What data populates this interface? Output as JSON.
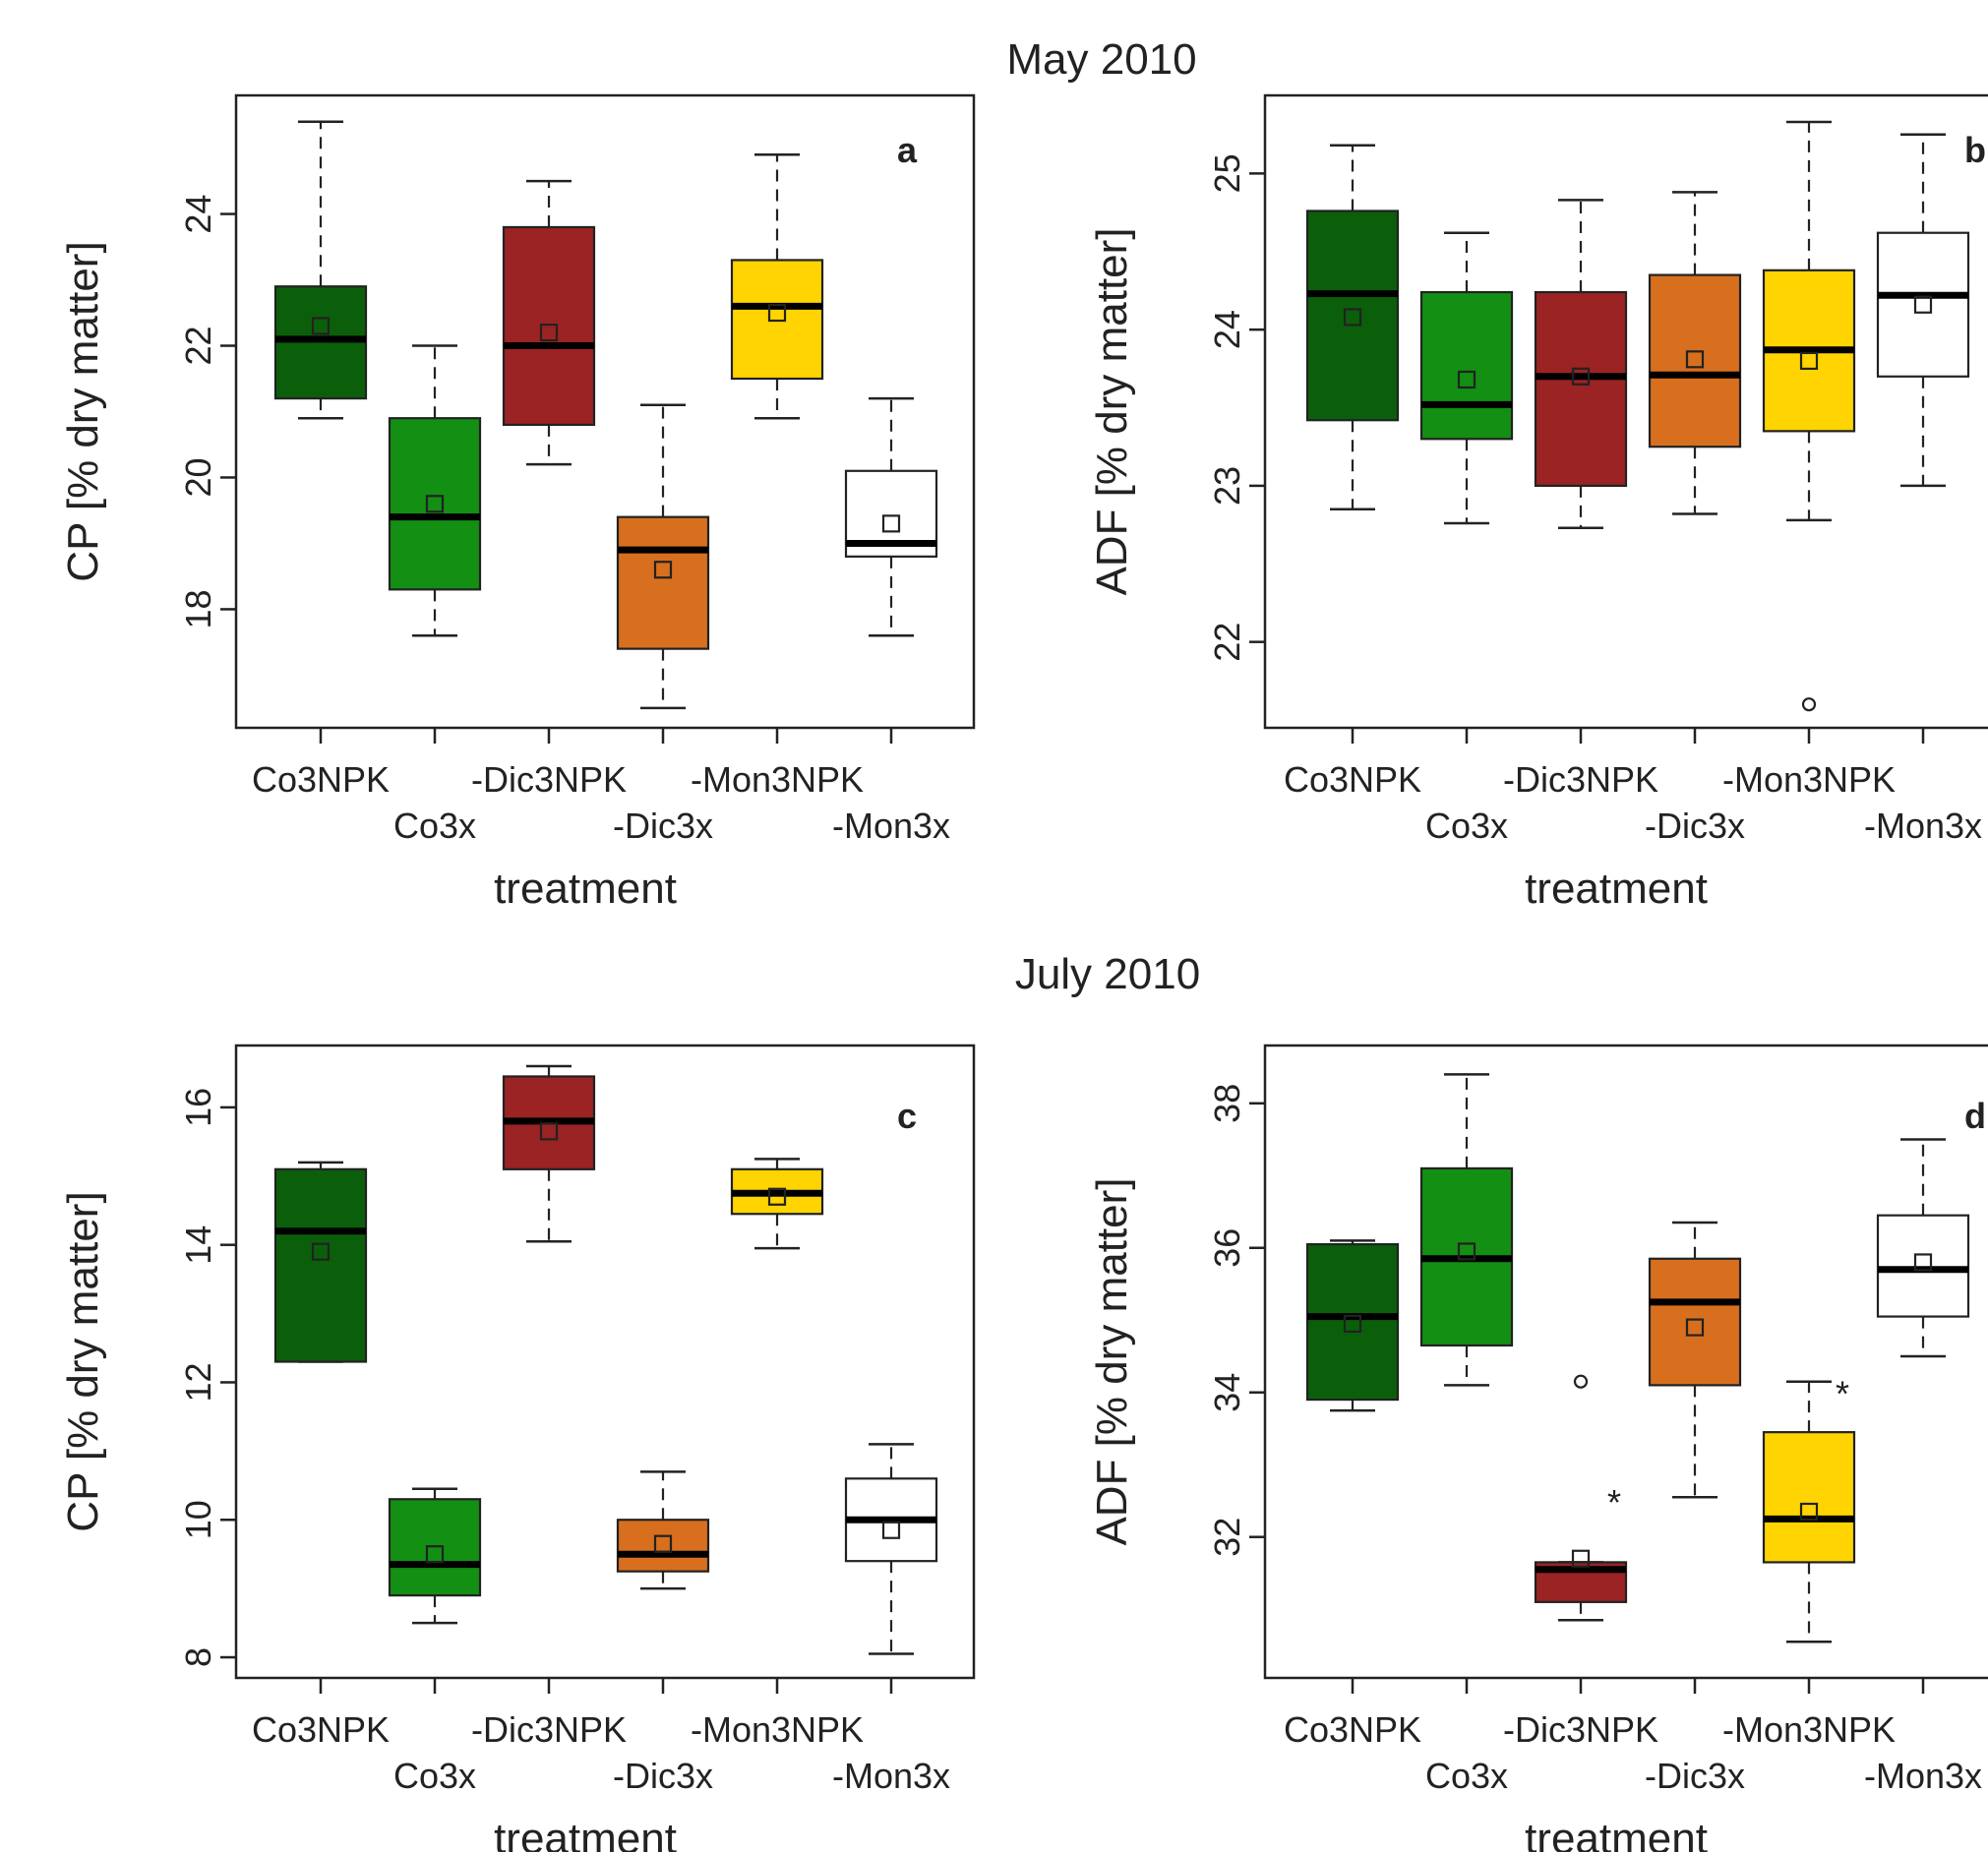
{
  "figure": {
    "row_titles": [
      "May 2010",
      "July 2010"
    ]
  },
  "colors": {
    "Co3NPK": "#0b5f0b",
    "Co3x": "#138f13",
    "-Dic3NPK": "#9b2323",
    "-Dic3x": "#d86f1f",
    "-Mon3NPK": "#ffd400",
    "-Mon3x": "#ffffff"
  },
  "chart_data": [
    {
      "type": "box",
      "panel_label": "a",
      "month": "May 2010",
      "xlabel": "treatment",
      "ylabel": "CP [% dry matter]",
      "categories": [
        "Co3NPK",
        "Co3x",
        "-Dic3NPK",
        "-Dic3x",
        "-Mon3NPK",
        "-Mon3x"
      ],
      "yticks": [
        18,
        20,
        22,
        24
      ],
      "ylim": [
        16.2,
        25.8
      ],
      "boxes": [
        {
          "whislo": 20.9,
          "q1": 21.2,
          "med": 22.1,
          "q3": 22.9,
          "whishi": 25.4,
          "mean": 22.3
        },
        {
          "whislo": 17.6,
          "q1": 18.3,
          "med": 19.4,
          "q3": 20.9,
          "whishi": 22.0,
          "mean": 19.6
        },
        {
          "whislo": 20.2,
          "q1": 20.8,
          "med": 22.0,
          "q3": 23.8,
          "whishi": 24.5,
          "mean": 22.2
        },
        {
          "whislo": 16.5,
          "q1": 17.4,
          "med": 18.9,
          "q3": 19.4,
          "whishi": 21.1,
          "mean": 18.6
        },
        {
          "whislo": 20.9,
          "q1": 21.5,
          "med": 22.6,
          "q3": 23.3,
          "whishi": 24.9,
          "mean": 22.5
        },
        {
          "whislo": 17.6,
          "q1": 18.8,
          "med": 19.0,
          "q3": 20.1,
          "whishi": 21.2,
          "mean": 19.3
        }
      ],
      "outliers": []
    },
    {
      "type": "box",
      "panel_label": "b",
      "month": "May 2010",
      "xlabel": "treatment",
      "ylabel": "ADF [% dry matter]",
      "categories": [
        "Co3NPK",
        "Co3x",
        "-Dic3NPK",
        "-Dic3x",
        "-Mon3NPK",
        "-Mon3x"
      ],
      "yticks": [
        22,
        23,
        24,
        25
      ],
      "ylim": [
        21.45,
        25.5
      ],
      "boxes": [
        {
          "whislo": 22.85,
          "q1": 23.42,
          "med": 24.23,
          "q3": 24.76,
          "whishi": 25.18,
          "mean": 24.08
        },
        {
          "whislo": 22.76,
          "q1": 23.3,
          "med": 23.52,
          "q3": 24.24,
          "whishi": 24.62,
          "mean": 23.68
        },
        {
          "whislo": 22.73,
          "q1": 23.0,
          "med": 23.7,
          "q3": 24.24,
          "whishi": 24.83,
          "mean": 23.7
        },
        {
          "whislo": 22.82,
          "q1": 23.25,
          "med": 23.71,
          "q3": 24.35,
          "whishi": 24.88,
          "mean": 23.81
        },
        {
          "whislo": 22.78,
          "q1": 23.35,
          "med": 23.87,
          "q3": 24.38,
          "whishi": 25.33,
          "mean": 23.8
        },
        {
          "whislo": 23.0,
          "q1": 23.7,
          "med": 24.22,
          "q3": 24.62,
          "whishi": 25.25,
          "mean": 24.16
        }
      ],
      "outliers": [
        {
          "category": "-Mon3NPK",
          "y": 21.6,
          "marker": "circle"
        }
      ]
    },
    {
      "type": "box",
      "panel_label": "c",
      "month": "July 2010",
      "xlabel": "treatment",
      "ylabel": "CP [% dry matter]",
      "categories": [
        "Co3NPK",
        "Co3x",
        "-Dic3NPK",
        "-Dic3x",
        "-Mon3NPK",
        "-Mon3x"
      ],
      "yticks": [
        8,
        10,
        12,
        14,
        16
      ],
      "ylim": [
        7.7,
        16.9
      ],
      "boxes": [
        {
          "whislo": 12.3,
          "q1": 12.3,
          "med": 14.2,
          "q3": 15.1,
          "whishi": 15.2,
          "mean": 13.9
        },
        {
          "whislo": 8.5,
          "q1": 8.9,
          "med": 9.35,
          "q3": 10.3,
          "whishi": 10.45,
          "mean": 9.5
        },
        {
          "whislo": 14.05,
          "q1": 15.1,
          "med": 15.8,
          "q3": 16.45,
          "whishi": 16.6,
          "mean": 15.65
        },
        {
          "whislo": 9.0,
          "q1": 9.25,
          "med": 9.5,
          "q3": 10.0,
          "whishi": 10.7,
          "mean": 9.65
        },
        {
          "whislo": 13.95,
          "q1": 14.45,
          "med": 14.75,
          "q3": 15.1,
          "whishi": 15.25,
          "mean": 14.7
        },
        {
          "whislo": 8.05,
          "q1": 9.4,
          "med": 10.0,
          "q3": 10.6,
          "whishi": 11.1,
          "mean": 9.85
        }
      ],
      "outliers": []
    },
    {
      "type": "box",
      "panel_label": "d",
      "month": "July 2010",
      "xlabel": "treatment",
      "ylabel": "ADF [% dry matter]",
      "categories": [
        "Co3NPK",
        "Co3x",
        "-Dic3NPK",
        "-Dic3x",
        "-Mon3NPK",
        "-Mon3x"
      ],
      "yticks": [
        32,
        34,
        36,
        38
      ],
      "ylim": [
        30.05,
        38.8
      ],
      "boxes": [
        {
          "whislo": 33.75,
          "q1": 33.9,
          "med": 35.05,
          "q3": 36.05,
          "whishi": 36.1,
          "mean": 34.95
        },
        {
          "whislo": 34.1,
          "q1": 34.65,
          "med": 35.85,
          "q3": 37.1,
          "whishi": 38.4,
          "mean": 35.95
        },
        {
          "whislo": 30.85,
          "q1": 31.1,
          "med": 31.55,
          "q3": 31.65,
          "whishi": 31.65,
          "mean": 31.7
        },
        {
          "whislo": 32.55,
          "q1": 34.1,
          "med": 35.25,
          "q3": 35.85,
          "whishi": 36.35,
          "mean": 34.9
        },
        {
          "whislo": 30.55,
          "q1": 31.65,
          "med": 32.25,
          "q3": 33.45,
          "whishi": 34.15,
          "mean": 32.35
        },
        {
          "whislo": 34.5,
          "q1": 35.05,
          "med": 35.7,
          "q3": 36.45,
          "whishi": 37.5,
          "mean": 35.8
        }
      ],
      "outliers": [
        {
          "category": "-Dic3NPK",
          "y": 34.15,
          "marker": "circle"
        },
        {
          "category": "-Dic3NPK",
          "y": 32.5,
          "marker": "star"
        },
        {
          "category": "-Mon3NPK",
          "y": 34.0,
          "marker": "star"
        }
      ]
    }
  ]
}
